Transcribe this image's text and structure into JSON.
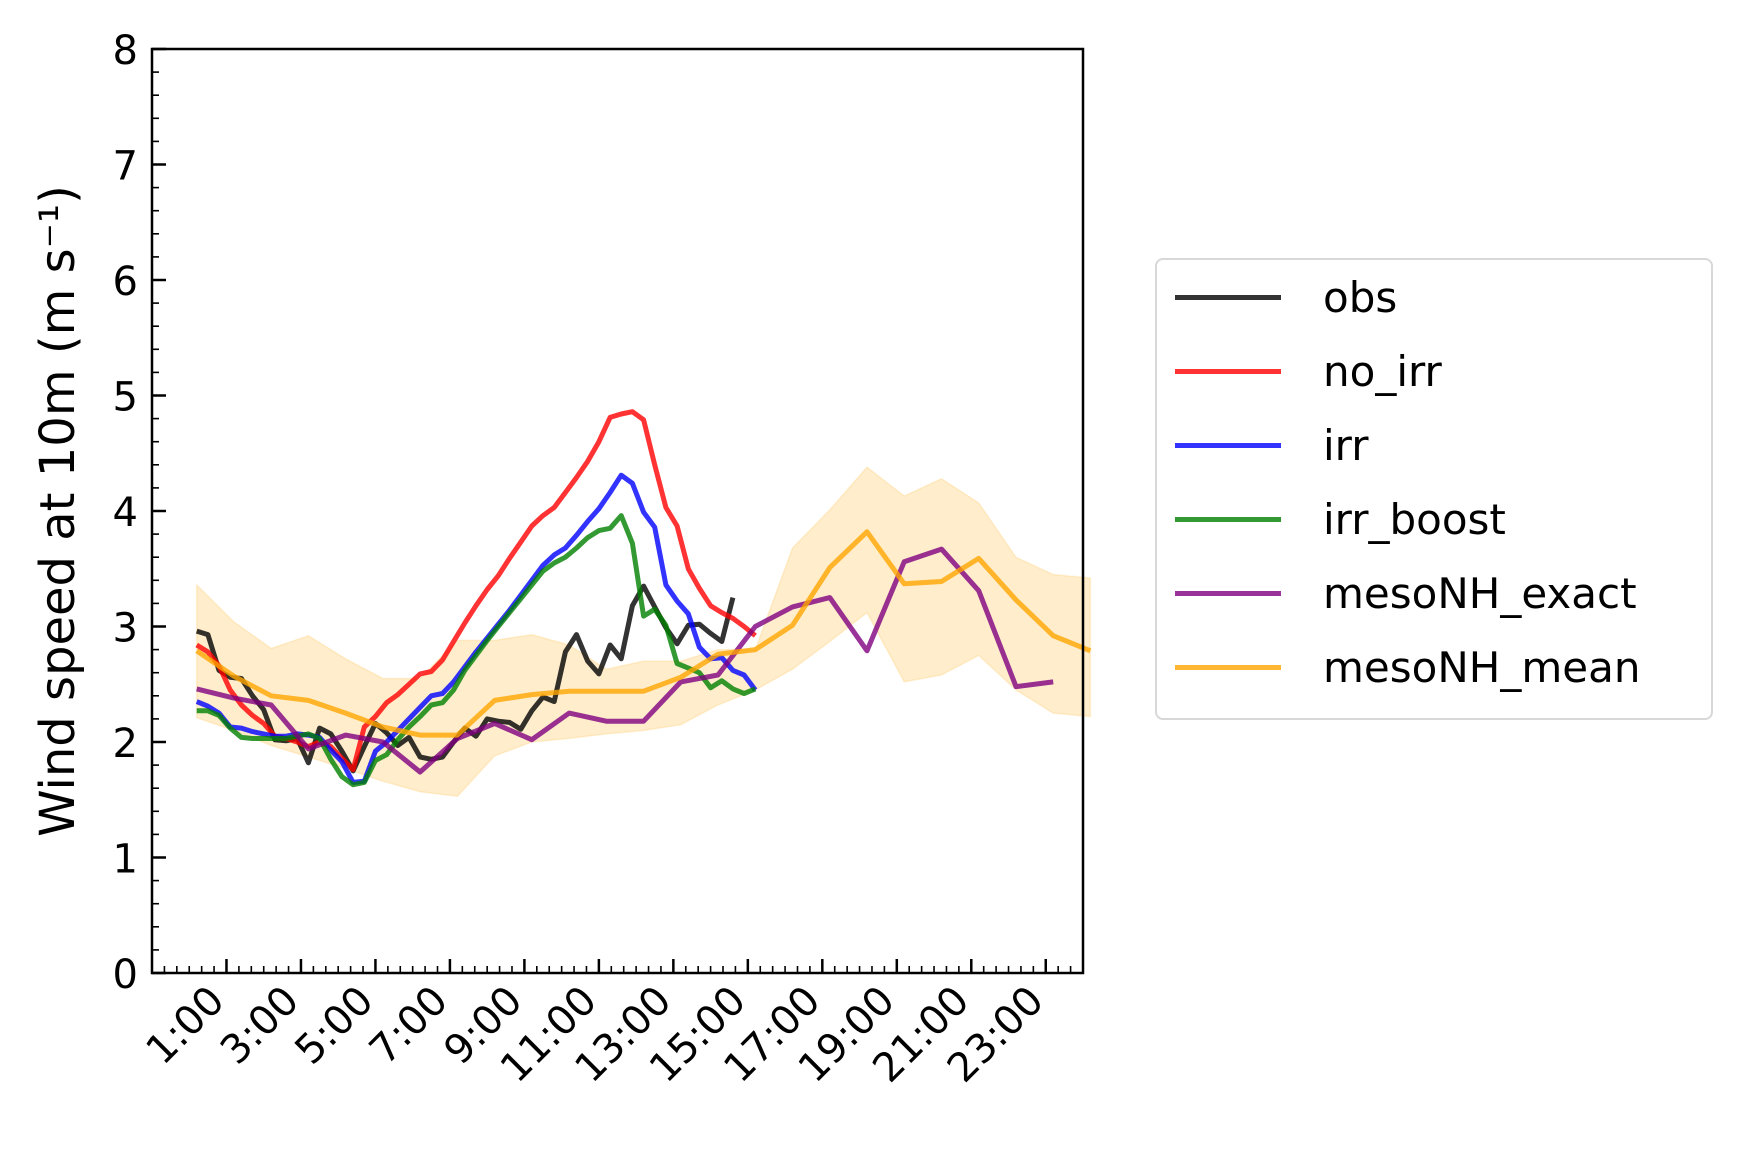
{
  "chart_data": {
    "type": "line",
    "title": "",
    "xlabel": "",
    "ylabel": "Wind speed at 10m (m s⁻¹)",
    "ylim": [
      0,
      8
    ],
    "xlim": [
      0,
      25
    ],
    "yticks": [
      0,
      1,
      2,
      3,
      4,
      5,
      6,
      7,
      8
    ],
    "x_ticks": [
      {
        "x": 2,
        "label": "1:00"
      },
      {
        "x": 4,
        "label": "3:00"
      },
      {
        "x": 6,
        "label": "5:00"
      },
      {
        "x": 8,
        "label": "7:00"
      },
      {
        "x": 10,
        "label": "9:00"
      },
      {
        "x": 12,
        "label": "11:00"
      },
      {
        "x": 14,
        "label": "13:00"
      },
      {
        "x": 16,
        "label": "15:00"
      },
      {
        "x": 18,
        "label": "17:00"
      },
      {
        "x": 20,
        "label": "19:00"
      },
      {
        "x": 22,
        "label": "21:00"
      },
      {
        "x": 24,
        "label": "23:00"
      }
    ],
    "grid": false,
    "legend_position": "right",
    "series": [
      {
        "name": "obs",
        "color": "#000000",
        "x_start": 1.2,
        "x_step": 0.3,
        "values": [
          2.96,
          2.93,
          2.62,
          2.56,
          2.55,
          2.4,
          2.28,
          2.02,
          2.01,
          2.03,
          1.82,
          2.12,
          2.07,
          1.92,
          1.75,
          1.96,
          2.16,
          2.08,
          1.97,
          2.04,
          1.87,
          1.85,
          1.87,
          2.0,
          2.12,
          2.05,
          2.2,
          2.18,
          2.17,
          2.11,
          2.27,
          2.39,
          2.35,
          2.78,
          2.93,
          2.7,
          2.59,
          2.84,
          2.72,
          3.18,
          3.35,
          3.17,
          2.99,
          2.85,
          3.01,
          3.02,
          2.94,
          2.87,
          3.25
        ]
      },
      {
        "name": "no_irr",
        "color": "#ff0000",
        "x_start": 1.2,
        "x_step": 0.3,
        "values": [
          2.84,
          2.78,
          2.66,
          2.45,
          2.32,
          2.23,
          2.16,
          2.05,
          2.03,
          2.0,
          1.96,
          2.0,
          1.96,
          1.86,
          1.76,
          2.13,
          2.22,
          2.34,
          2.41,
          2.5,
          2.59,
          2.61,
          2.71,
          2.87,
          3.03,
          3.18,
          3.32,
          3.44,
          3.59,
          3.73,
          3.87,
          3.96,
          4.03,
          4.16,
          4.29,
          4.43,
          4.6,
          4.81,
          4.84,
          4.86,
          4.79,
          4.4,
          4.03,
          3.87,
          3.5,
          3.33,
          3.18,
          3.12,
          3.07,
          3.0,
          2.92
        ]
      },
      {
        "name": "irr",
        "color": "#0000ff",
        "x_start": 1.2,
        "x_step": 0.3,
        "values": [
          2.35,
          2.31,
          2.25,
          2.13,
          2.12,
          2.09,
          2.07,
          2.05,
          2.05,
          2.07,
          2.06,
          2.04,
          1.93,
          1.83,
          1.65,
          1.66,
          1.92,
          2.0,
          2.1,
          2.2,
          2.3,
          2.4,
          2.42,
          2.52,
          2.65,
          2.78,
          2.9,
          3.02,
          3.14,
          3.27,
          3.4,
          3.53,
          3.62,
          3.68,
          3.79,
          3.91,
          4.02,
          4.16,
          4.31,
          4.24,
          3.99,
          3.86,
          3.36,
          3.22,
          3.11,
          2.82,
          2.72,
          2.73,
          2.62,
          2.58,
          2.45
        ]
      },
      {
        "name": "irr_boost",
        "color": "#008000",
        "x_start": 1.2,
        "x_step": 0.3,
        "values": [
          2.27,
          2.27,
          2.23,
          2.12,
          2.04,
          2.03,
          2.03,
          2.03,
          2.03,
          2.05,
          2.07,
          2.03,
          1.85,
          1.7,
          1.63,
          1.65,
          1.84,
          1.89,
          2.02,
          2.13,
          2.22,
          2.32,
          2.34,
          2.45,
          2.62,
          2.75,
          2.88,
          3.0,
          3.12,
          3.24,
          3.36,
          3.48,
          3.55,
          3.6,
          3.68,
          3.77,
          3.83,
          3.85,
          3.96,
          3.72,
          3.09,
          3.15,
          3.01,
          2.68,
          2.64,
          2.6,
          2.47,
          2.53,
          2.46,
          2.42,
          2.46
        ]
      },
      {
        "name": "mesoNH_exact",
        "color": "#800080",
        "x_start": 1.2,
        "x_step": 1,
        "values": [
          2.46,
          2.38,
          2.32,
          1.94,
          2.06,
          2.0,
          1.74,
          2.03,
          2.16,
          2.02,
          2.25,
          2.18,
          2.18,
          2.52,
          2.58,
          3.0,
          3.17,
          3.25,
          2.79,
          3.56,
          3.67,
          3.31,
          2.48,
          2.52
        ]
      },
      {
        "name": "mesoNH_mean",
        "color": "#ffa500",
        "x_start": 1.2,
        "x_step": 1,
        "values": [
          2.79,
          2.57,
          2.4,
          2.36,
          2.25,
          2.13,
          2.06,
          2.06,
          2.36,
          2.41,
          2.44,
          2.44,
          2.44,
          2.56,
          2.76,
          2.8,
          3.01,
          3.51,
          3.82,
          3.37,
          3.39,
          3.59,
          3.23,
          2.92,
          2.79
        ],
        "band_upper": [
          3.36,
          3.04,
          2.81,
          2.92,
          2.72,
          2.55,
          2.55,
          2.88,
          2.88,
          2.93,
          2.84,
          2.63,
          2.7,
          2.7,
          2.8,
          2.8,
          3.68,
          4.01,
          4.38,
          4.13,
          4.28,
          4.07,
          3.6,
          3.45,
          3.42
        ],
        "band_lower": [
          2.21,
          2.1,
          1.97,
          1.87,
          1.77,
          1.66,
          1.57,
          1.53,
          1.88,
          2.0,
          2.03,
          2.07,
          2.1,
          2.15,
          2.32,
          2.45,
          2.63,
          2.87,
          3.12,
          2.52,
          2.58,
          2.75,
          2.45,
          2.25,
          2.22
        ]
      }
    ]
  }
}
